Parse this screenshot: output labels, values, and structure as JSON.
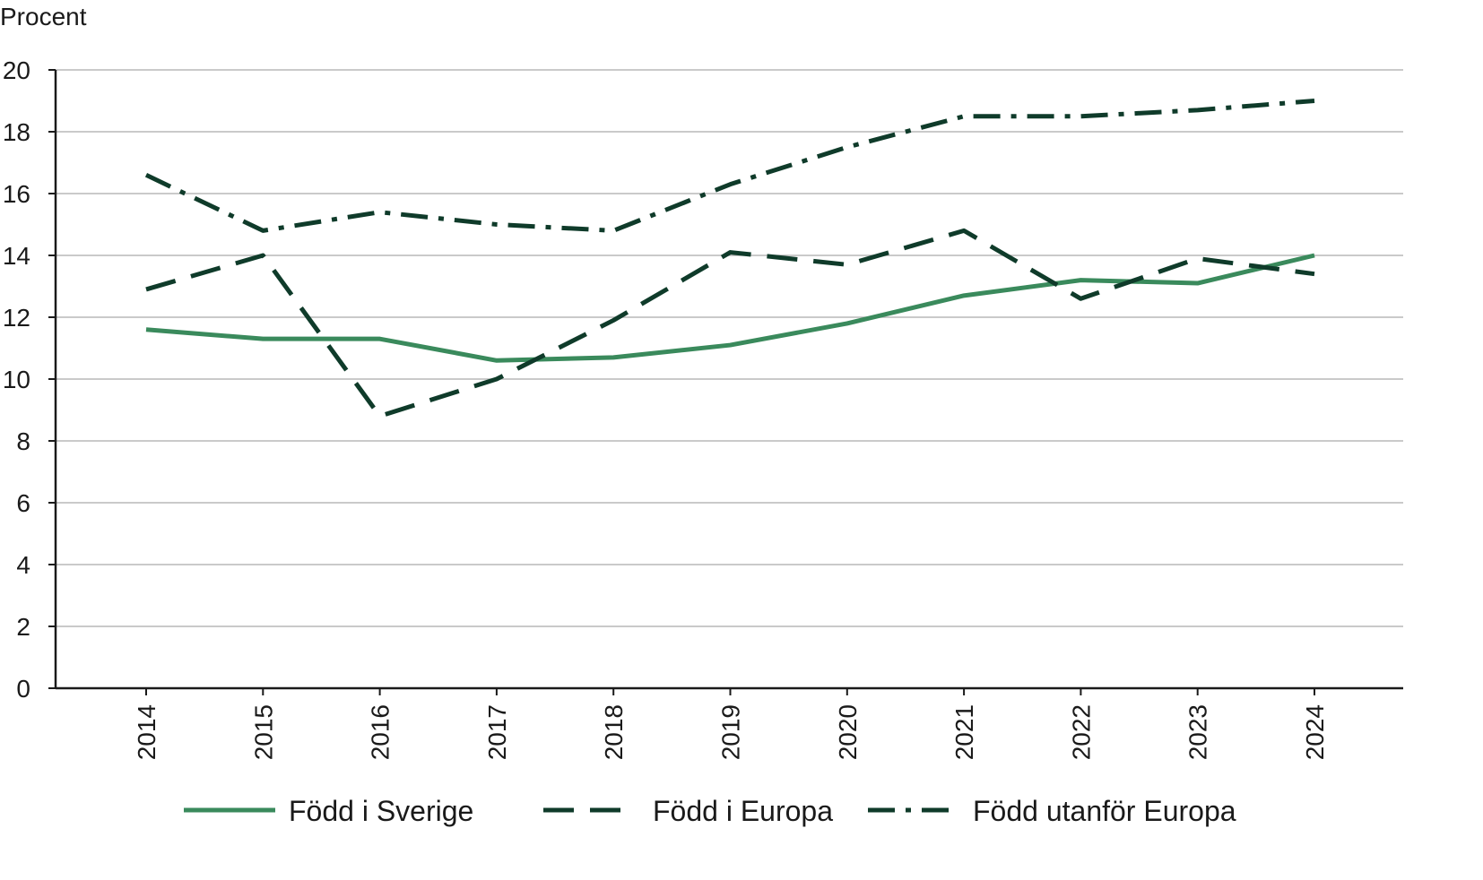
{
  "chart_data": {
    "type": "line",
    "title": "",
    "xlabel": "",
    "ylabel": "Procent",
    "ylim": [
      0,
      20
    ],
    "yticks": [
      "0",
      "2",
      "4",
      "6",
      "8",
      "10",
      "12",
      "14",
      "16",
      "18",
      "20"
    ],
    "grid": true,
    "legend_position": "bottom",
    "categories": [
      "2014",
      "2015",
      "2016",
      "2017",
      "2018",
      "2019",
      "2020",
      "2021",
      "2022",
      "2023",
      "2024"
    ],
    "series": [
      {
        "name": "Född i Sverige",
        "style": "solid",
        "color": "#3a8a5c",
        "values": [
          11.6,
          11.3,
          11.3,
          10.6,
          10.7,
          11.1,
          11.8,
          12.7,
          13.2,
          13.1,
          14.0
        ]
      },
      {
        "name": "Född i Europa",
        "style": "dashed",
        "color": "#0f3b2a",
        "values": [
          12.9,
          14.0,
          8.8,
          10.0,
          11.9,
          14.1,
          13.7,
          14.8,
          12.6,
          13.9,
          13.4
        ]
      },
      {
        "name": "Född utanför Europa",
        "style": "dashdot",
        "color": "#0f3b2a",
        "values": [
          16.6,
          14.8,
          15.4,
          15.0,
          14.8,
          16.3,
          17.5,
          18.5,
          18.5,
          18.7,
          19.0
        ]
      }
    ]
  }
}
